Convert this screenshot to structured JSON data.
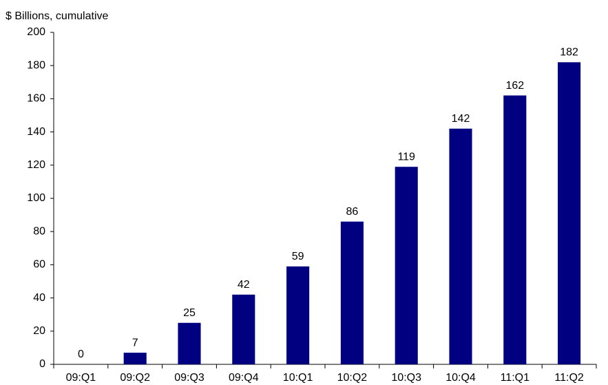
{
  "chart_data": {
    "type": "bar",
    "subtitle": "$ Billions, cumulative",
    "categories": [
      "09:Q1",
      "09:Q2",
      "09:Q3",
      "09:Q4",
      "10:Q1",
      "10:Q2",
      "10:Q3",
      "10:Q4",
      "11:Q1",
      "11:Q2"
    ],
    "values": [
      0,
      7,
      25,
      42,
      59,
      86,
      119,
      142,
      162,
      182
    ],
    "color": "#000080",
    "ylim": [
      0,
      200
    ],
    "yticks": [
      0,
      20,
      40,
      60,
      80,
      100,
      120,
      140,
      160,
      180,
      200
    ],
    "grid": false
  }
}
